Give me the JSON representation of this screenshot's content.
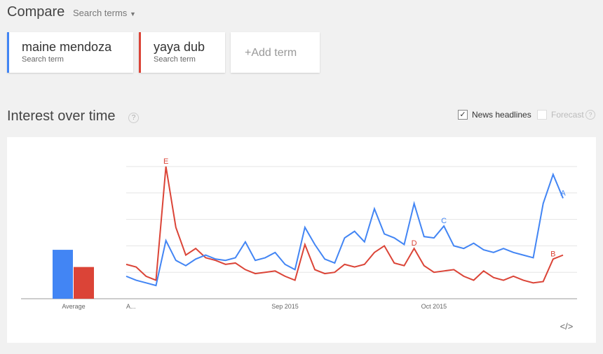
{
  "header": {
    "title": "Compare",
    "dropdown": "Search terms"
  },
  "terms": [
    {
      "sublabel": "Search term"
    },
    {
      "sublabel": "Search term"
    }
  ],
  "add_term": "+Add term",
  "section": {
    "title": "Interest over time",
    "help": "?",
    "news_headlines": "News headlines",
    "forecast": "Forecast",
    "forecast_help": "?"
  },
  "embed": "</>",
  "chart_data": {
    "type": "line",
    "categories": [
      "A...",
      null,
      null,
      null,
      null,
      null,
      null,
      null,
      null,
      null,
      null,
      null,
      null,
      null,
      null,
      null,
      "Sep 2015",
      null,
      null,
      null,
      null,
      null,
      null,
      null,
      null,
      null,
      null,
      null,
      null,
      null,
      null,
      "Oct 2015",
      null,
      null,
      null,
      null,
      null,
      null,
      null,
      null,
      null,
      null,
      null,
      null,
      null
    ],
    "series": [
      {
        "name": "maine mendoza",
        "color": "#4285f4",
        "values": [
          17,
          14,
          12,
          10,
          44,
          29,
          25,
          30,
          33,
          30,
          29,
          31,
          43,
          29,
          31,
          35,
          26,
          22,
          54,
          41,
          30,
          27,
          46,
          51,
          43,
          68,
          49,
          46,
          41,
          72,
          47,
          46,
          55,
          40,
          38,
          42,
          37,
          35,
          38,
          35,
          33,
          31,
          72,
          94,
          76
        ]
      },
      {
        "name": "yaya dub",
        "color": "#db4437",
        "values": [
          26,
          24,
          17,
          14,
          100,
          54,
          33,
          38,
          31,
          29,
          26,
          27,
          22,
          19,
          20,
          21,
          17,
          14,
          41,
          22,
          19,
          20,
          26,
          24,
          26,
          35,
          40,
          27,
          25,
          38,
          25,
          20,
          21,
          22,
          17,
          14,
          21,
          16,
          14,
          17,
          14,
          12,
          13,
          30,
          33
        ]
      }
    ],
    "averages": {
      "label": "Average",
      "values": [
        37,
        24
      ]
    },
    "annotations": [
      "A",
      "B",
      "C",
      "D",
      "E"
    ],
    "ylim": [
      0,
      100
    ],
    "yticks": [
      0,
      20,
      40,
      60,
      80,
      100
    ],
    "grid": true
  }
}
